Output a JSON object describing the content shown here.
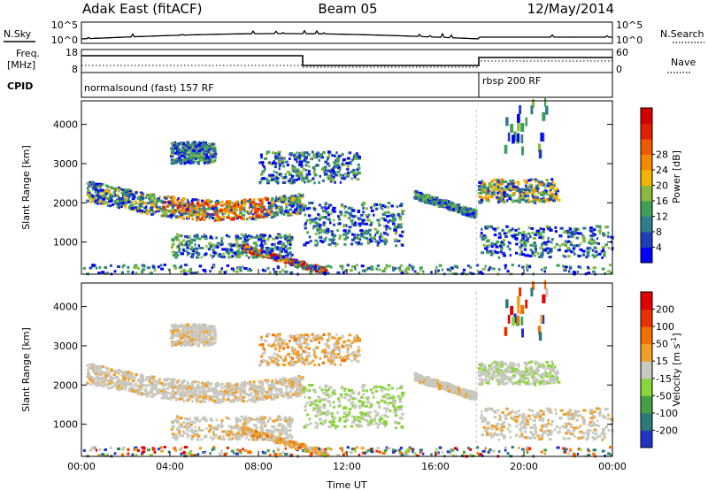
{
  "header": {
    "left": "Adak East (fitACF)",
    "center": "Beam 05",
    "right": "12/May/2014"
  },
  "strip": {
    "nsky_label": "N.Sky",
    "nsky_ticks": [
      "10^5",
      "10^0"
    ],
    "nsky_ticks_right": [
      "10^5",
      "10^0"
    ],
    "nsearch_label": "N.Search",
    "freq_label": "Freq.",
    "freq_unit": "[MHz]",
    "freq_ticks": [
      "18",
      "8"
    ],
    "nave_ticks": [
      "60",
      "0"
    ],
    "nave_label": "Nave",
    "cpid_label": "CPID",
    "cpid_1": "normalsound (fast) 157 RF",
    "cpid_2": "rbsp 200 RF"
  },
  "chart_data": [
    {
      "type": "heatmap",
      "title": "",
      "ylabel": "Slant Range [km]",
      "xlabel": "",
      "xlim": [
        0,
        24
      ],
      "ylim": [
        180,
        4600
      ],
      "yticks": [
        "1000",
        "2000",
        "3000",
        "4000"
      ],
      "colorbar": {
        "label": "Power [dB]",
        "ticks": [
          "4",
          "8",
          "12",
          "16",
          "20",
          "24",
          "28"
        ],
        "colors": [
          "#0000ff",
          "#1f3fb8",
          "#2e7d8c",
          "#3fa05a",
          "#89b93f",
          "#f2b400",
          "#f28a00",
          "#ef5a00",
          "#e02000",
          "#d40000"
        ]
      }
    },
    {
      "type": "heatmap",
      "title": "",
      "ylabel": "Slant Range [km]",
      "xlabel": "Time UT",
      "xlim": [
        0,
        24
      ],
      "ylim": [
        180,
        4600
      ],
      "yticks": [
        "1000",
        "2000",
        "3000",
        "4000"
      ],
      "xticks": [
        "00:00",
        "04:00",
        "08:00",
        "12:00",
        "16:00",
        "20:00",
        "00:00"
      ],
      "colorbar": {
        "label": "Velocity [m s",
        "label_sup": "-1",
        "label_end": "]",
        "ticks": [
          "200",
          "100",
          "50",
          "15",
          "-15",
          "-50",
          "-100",
          "-200"
        ],
        "colors": [
          "#2234c4",
          "#2a7a7a",
          "#46a046",
          "#8ad43c",
          "#c8c8c0",
          "#f0a028",
          "#f07000",
          "#e83000",
          "#e00000"
        ]
      }
    }
  ]
}
